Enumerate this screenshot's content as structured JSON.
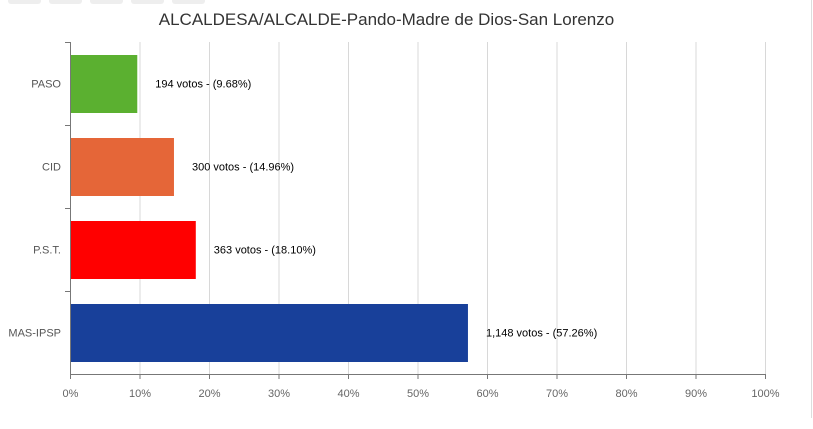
{
  "chart_data": {
    "type": "bar",
    "orientation": "horizontal",
    "title": "ALCALDESA/ALCALDE-Pando-Madre de Dios-San Lorenzo",
    "categories": [
      "PASO",
      "CID",
      "P.S.T.",
      "MAS-IPSP"
    ],
    "values": [
      9.68,
      14.96,
      18.1,
      57.26
    ],
    "votes": [
      194,
      300,
      363,
      1148
    ],
    "data_labels": [
      "194 votos - (9.68%)",
      "300 votos - (14.96%)",
      "363 votos - (18.10%)",
      "1,148 votos - (57.26%)"
    ],
    "colors": [
      "#5bb030",
      "#e56638",
      "#ff0000",
      "#18409a"
    ],
    "xlim": [
      0,
      100
    ],
    "xticks": [
      "0%",
      "10%",
      "20%",
      "30%",
      "40%",
      "50%",
      "60%",
      "70%",
      "80%",
      "90%",
      "100%"
    ],
    "grid": true,
    "xlabel": "",
    "ylabel": ""
  }
}
